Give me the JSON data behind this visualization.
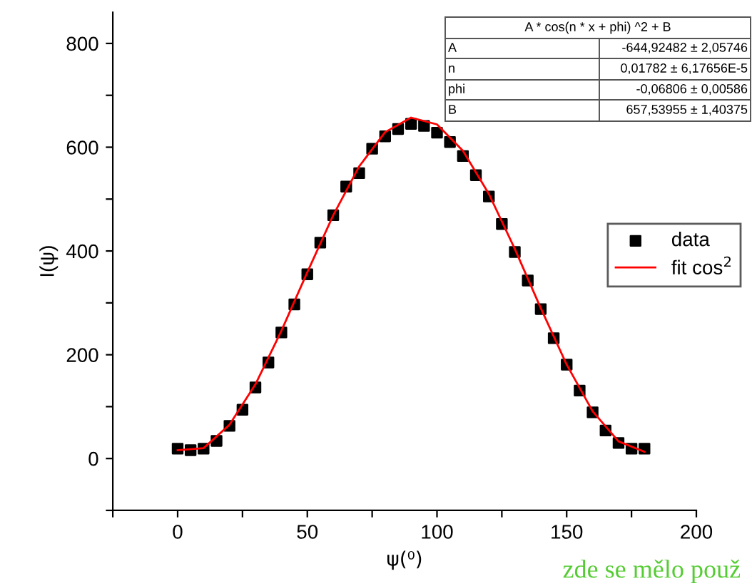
{
  "chart_data": {
    "type": "scatter",
    "xlabel": "ψ(⁰)",
    "ylabel": "I(ψ)",
    "xlim": [
      -25,
      200
    ],
    "ylim": [
      -100,
      860
    ],
    "xticks": [
      {
        "value": -25,
        "label": null
      },
      0,
      {
        "value": 25,
        "label": null
      },
      50,
      {
        "value": 75,
        "label": null
      },
      100,
      {
        "value": 125,
        "label": null
      },
      150,
      {
        "value": 175,
        "label": null
      },
      200
    ],
    "yticks": [
      {
        "value": -100,
        "label": null
      },
      0,
      {
        "value": 100,
        "label": null
      },
      200,
      {
        "value": 300,
        "label": null
      },
      400,
      {
        "value": 500,
        "label": null
      },
      600,
      {
        "value": 700,
        "label": null
      },
      800
    ],
    "grid": false,
    "legend": "right",
    "marker": "square",
    "series": [
      {
        "name": "data",
        "color": "#000000",
        "x": [
          0,
          5,
          10,
          15,
          20,
          25,
          30,
          35,
          40,
          45,
          50,
          55,
          60,
          65,
          70,
          75,
          80,
          85,
          90,
          95,
          100,
          105,
          110,
          115,
          120,
          125,
          130,
          135,
          140,
          145,
          150,
          155,
          160,
          165,
          170,
          175,
          180
        ],
        "values": [
          19,
          16,
          19,
          34,
          63,
          94,
          137,
          185,
          243,
          297,
          355,
          416,
          469,
          524,
          550,
          597,
          621,
          635,
          645,
          641,
          628,
          610,
          583,
          546,
          505,
          452,
          398,
          343,
          288,
          232,
          181,
          131,
          89,
          54,
          30,
          19,
          19
        ]
      },
      {
        "name": "fit cos$^{2}$",
        "color": "#ff0000",
        "type": "line",
        "marker": "none",
        "line_style": "solid",
        "x": [
          0,
          10,
          20,
          30,
          40,
          50,
          60,
          70,
          80,
          90,
          100,
          110,
          120,
          130,
          140,
          150,
          160,
          170,
          180
        ],
        "values": [
          16,
          20,
          65,
          143,
          246,
          359,
          469,
          563,
          629,
          657,
          644,
          593,
          510,
          404,
          290,
          181,
          91,
          33,
          13
        ]
      }
    ],
    "annotations": [
      "A * cos(n * x + phi) ^2 + B",
      "A",
      "-644,92482 ± 2,05746",
      "n",
      "0,01782 ± 6,17656E-5",
      "phi",
      "-0,06806 ± 0,00586",
      "B",
      "657,53955 ± 1,40375",
      "zde se mělo použ"
    ]
  }
}
